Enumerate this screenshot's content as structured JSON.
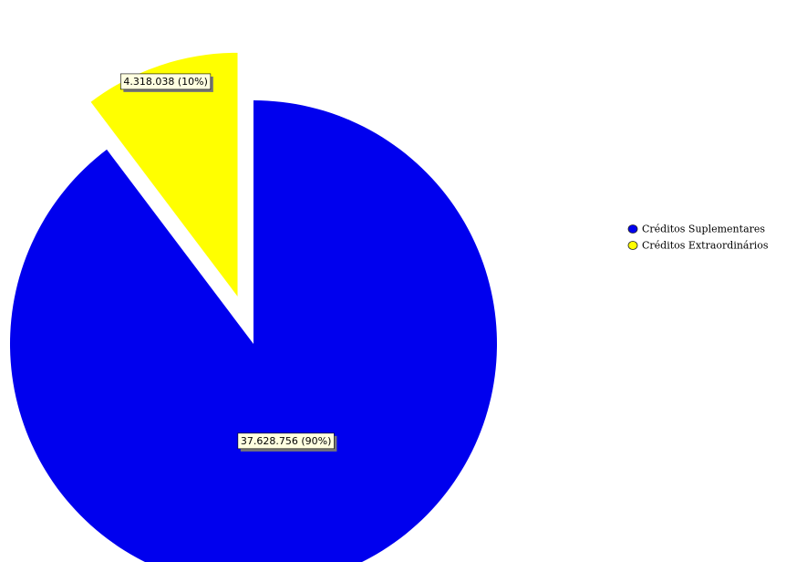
{
  "chart_data": {
    "type": "pie",
    "title": "",
    "slices": [
      {
        "label": "Créditos Suplementares",
        "value": 37628756,
        "display": "37.628.756 (90%)",
        "color": "#0000ee",
        "exploded": false
      },
      {
        "label": "Créditos Extraordinários",
        "value": 4318038,
        "display": "4.318.038 (10%)",
        "color": "#ffff00",
        "exploded": true
      }
    ],
    "legend_placement": "right",
    "data_label_background": "#ffffe0"
  }
}
